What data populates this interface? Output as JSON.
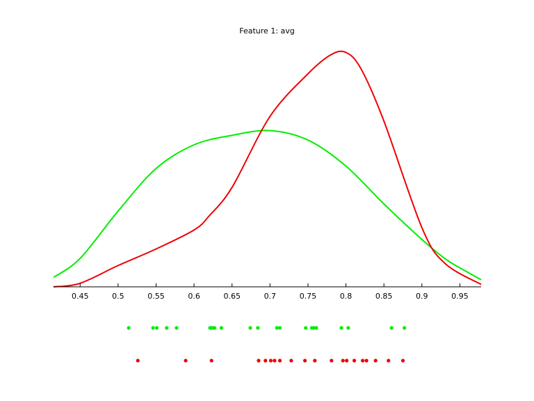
{
  "chart_data": {
    "type": "line",
    "title": "Feature 1: avg",
    "xlabel": "",
    "ylabel": "",
    "xlim": [
      0.415,
      0.978
    ],
    "ylim": [
      0,
      1.0
    ],
    "xticks": [
      0.45,
      0.5,
      0.55,
      0.6,
      0.65,
      0.7,
      0.75,
      0.8,
      0.85,
      0.9,
      0.95
    ],
    "xtick_labels": [
      "0.45",
      "0.5",
      "0.55",
      "0.6",
      "0.65",
      "0.7",
      "0.75",
      "0.8",
      "0.85",
      "0.9",
      "0.95"
    ],
    "grid": false,
    "series": [
      {
        "color": "#00ee00",
        "x": [
          0.415,
          0.45,
          0.5,
          0.55,
          0.6,
          0.65,
          0.7,
          0.75,
          0.8,
          0.85,
          0.9,
          0.93,
          0.95,
          0.978
        ],
        "y": [
          0.04,
          0.12,
          0.32,
          0.5,
          0.6,
          0.64,
          0.66,
          0.62,
          0.51,
          0.35,
          0.2,
          0.12,
          0.08,
          0.03
        ],
        "points": [
          0.514,
          0.546,
          0.551,
          0.564,
          0.577,
          0.621,
          0.623,
          0.625,
          0.627,
          0.636,
          0.674,
          0.684,
          0.709,
          0.713,
          0.747,
          0.755,
          0.758,
          0.761,
          0.794,
          0.803,
          0.86,
          0.877
        ]
      },
      {
        "color": "#ee0000",
        "x": [
          0.415,
          0.45,
          0.5,
          0.55,
          0.6,
          0.62,
          0.65,
          0.7,
          0.75,
          0.78,
          0.8,
          0.82,
          0.85,
          0.9,
          0.93,
          0.978
        ],
        "y": [
          0.0,
          0.015,
          0.09,
          0.16,
          0.24,
          0.3,
          0.42,
          0.72,
          0.9,
          0.98,
          0.99,
          0.92,
          0.7,
          0.25,
          0.1,
          0.01
        ],
        "points": [
          0.526,
          0.589,
          0.623,
          0.685,
          0.694,
          0.701,
          0.706,
          0.713,
          0.728,
          0.746,
          0.759,
          0.781,
          0.796,
          0.801,
          0.811,
          0.822,
          0.827,
          0.839,
          0.856,
          0.875
        ]
      }
    ]
  }
}
